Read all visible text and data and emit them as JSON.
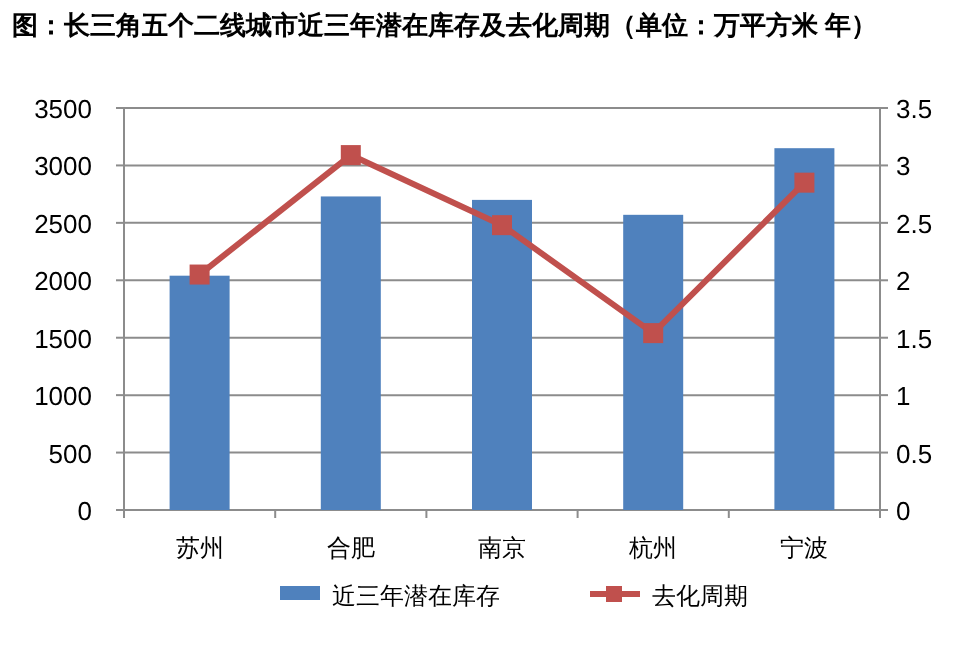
{
  "chart_data": {
    "type": "bar",
    "title": "图：长三角五个二线城市近三年潜在库存及去化周期（单位：万平方米  年）",
    "categories": [
      "苏州",
      "合肥",
      "南京",
      "杭州",
      "宁波"
    ],
    "series": [
      {
        "name": "近三年潜在库存",
        "color": "#4f81bd",
        "values": [
          2040,
          2730,
          2700,
          2570,
          3150
        ]
      },
      {
        "name": "去化周期",
        "type": "line",
        "axis": "y2",
        "color": "#c0504d",
        "marker": "square",
        "values": [
          2.05,
          3.09,
          2.48,
          1.54,
          2.85
        ]
      }
    ],
    "ylim": [
      0,
      3500
    ],
    "yticks": [
      0,
      500,
      1000,
      1500,
      2000,
      2500,
      3000,
      3500
    ],
    "y2lim": [
      0,
      3.5
    ],
    "y2ticks": [
      0,
      0.5,
      1,
      1.5,
      2,
      2.5,
      3,
      3.5
    ],
    "grid": "y",
    "legend": "bottom"
  }
}
